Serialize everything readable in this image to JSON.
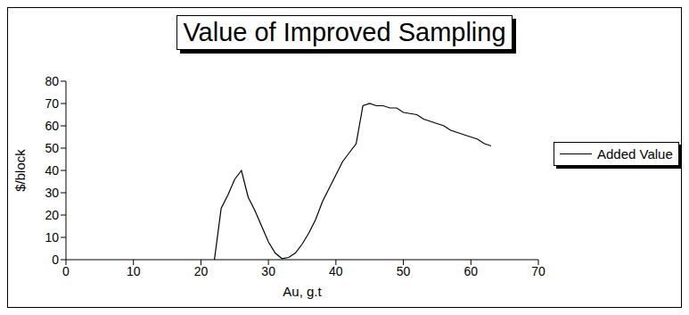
{
  "chart_data": {
    "type": "line",
    "title": "Value of Improved Sampling",
    "x_label": "Au, g.t",
    "y_label": "$/block",
    "x": [
      22,
      23,
      24,
      25,
      26,
      27,
      28,
      29,
      30,
      31,
      32,
      33,
      34,
      35,
      36,
      37,
      38,
      39,
      40,
      41,
      42,
      43,
      44,
      45,
      46,
      47,
      48,
      49,
      50,
      51,
      52,
      53,
      54,
      55,
      56,
      57,
      58,
      59,
      60,
      61,
      62,
      63
    ],
    "series": [
      {
        "name": "Added Value",
        "color": "#000000",
        "values": [
          0,
          23,
          29,
          36,
          40,
          28,
          22,
          15,
          8,
          3,
          0.5,
          1,
          3,
          7,
          12,
          18,
          26,
          32,
          38,
          44,
          48,
          52,
          69,
          70,
          69,
          69,
          68,
          68,
          66,
          65.5,
          65,
          63,
          62,
          61,
          60,
          58,
          57,
          56,
          55,
          54,
          52,
          51
        ]
      }
    ],
    "xlim": [
      0,
      70
    ],
    "xticks": [
      0,
      10,
      20,
      30,
      40,
      50,
      60,
      70
    ],
    "ylim": [
      0,
      80
    ],
    "yticks": [
      0,
      10,
      20,
      30,
      40,
      50,
      60,
      70,
      80
    ],
    "grid": false,
    "legend": "right"
  }
}
